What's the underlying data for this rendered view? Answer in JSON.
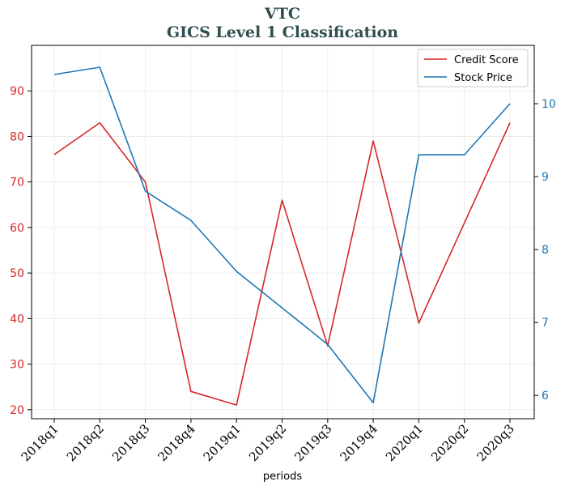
{
  "chart_data": {
    "type": "line",
    "title": "VTC",
    "subtitle": "GICS Level 1 Classification",
    "xlabel": "periods",
    "categories": [
      "2018q1",
      "2018q2",
      "2018q3",
      "2018q4",
      "2019q1",
      "2019q2",
      "2019q3",
      "2019q4",
      "2020q1",
      "2020q2",
      "2020q3"
    ],
    "series": [
      {
        "name": "Credit Score",
        "axis": "left",
        "color": "#d62728",
        "values": [
          76,
          83,
          70,
          24,
          21,
          66,
          34,
          79,
          39,
          61,
          83
        ]
      },
      {
        "name": "Stock Price",
        "axis": "right",
        "color": "#1f77b4",
        "values": [
          10.4,
          10.5,
          8.8,
          8.4,
          7.7,
          7.2,
          6.7,
          5.9,
          9.3,
          9.3,
          10.0
        ]
      }
    ],
    "ylim_left": [
      18,
      100
    ],
    "yticks_left": [
      "20",
      "30",
      "40",
      "50",
      "60",
      "70",
      "80",
      "90"
    ],
    "ylim_right": [
      5.68,
      10.8
    ],
    "yticks_right": [
      "6",
      "7",
      "8",
      "9",
      "10"
    ],
    "grid": true,
    "legend_position": "upper right"
  }
}
